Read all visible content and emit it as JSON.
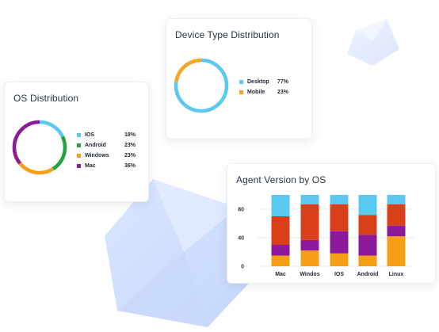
{
  "os_card": {
    "title": "OS Distribution",
    "legend": [
      {
        "label": "IOS",
        "value": "18%",
        "color": "#5bc8ef"
      },
      {
        "label": "Android",
        "value": "23%",
        "color": "#23a23f"
      },
      {
        "label": "Windows",
        "value": "23%",
        "color": "#f59f16"
      },
      {
        "label": "Mac",
        "value": "36%",
        "color": "#8d1a9a"
      }
    ]
  },
  "device_card": {
    "title": "Device Type Distribution",
    "legend": [
      {
        "label": "Desktop",
        "value": "77%",
        "color": "#5bc8ef"
      },
      {
        "label": "Mobile",
        "value": "23%",
        "color": "#f5a623"
      }
    ]
  },
  "agent_card": {
    "title": "Agent Version by OS"
  },
  "chart_data": [
    {
      "type": "pie",
      "labels": [
        "IOS",
        "Android",
        "Windows",
        "Mac"
      ],
      "values": [
        18,
        23,
        23,
        36
      ],
      "colors": [
        "#5bc8ef",
        "#23a23f",
        "#f59f16",
        "#8d1a9a"
      ],
      "legend": "right"
    },
    {
      "type": "pie",
      "labels": [
        "Desktop",
        "Mobile"
      ],
      "values": [
        77,
        23
      ],
      "colors": [
        "#5bc8ef",
        "#f5a623"
      ],
      "legend": "right"
    },
    {
      "type": "bar",
      "stacked": true,
      "categories": [
        "Mac",
        "Windos",
        "IOS",
        "Android",
        "Linux"
      ],
      "yticks": [
        "80",
        "40",
        "0"
      ],
      "ylim": [
        0,
        100
      ],
      "grid": true,
      "series": [
        {
          "color": "#f59f16",
          "values": [
            15,
            22,
            18,
            15,
            42
          ]
        },
        {
          "color": "#8d1a9a",
          "values": [
            15,
            15,
            31,
            29,
            15
          ]
        },
        {
          "color": "#d9401a",
          "values": [
            40,
            50,
            38,
            28,
            30
          ]
        },
        {
          "color": "#5bc8ef",
          "values": [
            30,
            13,
            13,
            28,
            13
          ]
        }
      ]
    }
  ]
}
